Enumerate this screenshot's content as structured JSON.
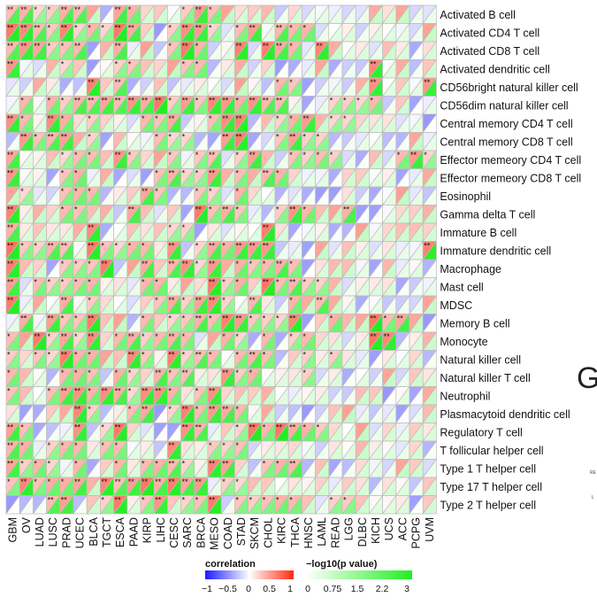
{
  "chart_data": {
    "type": "heatmap",
    "title": "",
    "xlabel": "",
    "ylabel": "",
    "x": [
      "GBM",
      "OV",
      "LUAD",
      "LUSC",
      "PRAD",
      "UCEC",
      "BLCA",
      "TGCT",
      "ESCA",
      "PAAD",
      "KIRP",
      "LIHC",
      "CESC",
      "SARC",
      "BRCA",
      "MESO",
      "COAD",
      "STAD",
      "SKCM",
      "CHOL",
      "KIRC",
      "THCA",
      "HNSC",
      "LAML",
      "READ",
      "LGG",
      "DLBC",
      "KICH",
      "UCS",
      "ACC",
      "PCPG",
      "UVM"
    ],
    "y": [
      "Activated B cell",
      "Activated CD4 T cell",
      "Activated CD8 T cell",
      "Activated dendritic cell",
      "CD56bright natural killer cell",
      "CD56dim natural killer cell",
      "Central memory CD4 T cell",
      "Central memory CD8 T cell",
      "Effector memeory CD4 T cell",
      "Effector memeory CD8 T cell",
      "Eosinophil",
      "Gamma delta T cell",
      "Immature  B cell",
      "Immature dendritic cell",
      "Macrophage",
      "Mast cell",
      "MDSC",
      "Memory B cell",
      "Monocyte",
      "Natural killer cell",
      "Natural killer T cell",
      "Neutrophil",
      "Plasmacytoid dendritic cell",
      "Regulatory T cell",
      "T follicular helper cell",
      "Type 1 T helper cell",
      "Type 17 T helper cell",
      "Type 2 T helper cell"
    ],
    "correlation_range": [
      -1,
      1
    ],
    "log_p_range": [
      0,
      3
    ],
    "cell_encoding": "upper-left triangle = correlation, lower-right triangle = -log10(p value)",
    "stars": [
      "**:*.**.****....***........****.............................",
      "*******.**.*.*.*****.....******....***..**.**....................*.",
      "*******.*.**....**.......****.....**..*****...**..................",
      "**.......*.......**.......*.*.........................**.........",
      "............**..**.......................**...........**......**...",
      "..*...*.*.***************.***.****.*******.......**.*..*.......",
      "**.*..***...*........*.***.....*****.....**.**...**..........",
      "..**.*****...*.........*.**.....****.....***.**.................",
      "**.......*.**...***.....*....***...***.....**.*.*..........****",
      "**.......**...........*.**.**.**...*..***.........................",
      "..*.....*..**.......**.*.....**....*.........................",
      "**.......**.......**........**.****.....*.***.....**................",
      "**..........**...........**...........**..............................",
      "**.*.*****..**.*.*.**...**...****.******......................**.",
      "**.......**.*.**....**..*****.**...**.*.***.......................",
      "**...*.**..**........**.......**.**...***.**.*.*....................",
      "**......**...*.........****.*****...**....*...**..................",
      "..**..***.*.**.......*...**.**.*****.*.**.**.....*....***.**...",
      ".*..***.**.***...***.*.****.....*.*...*....*.*........****.....",
      ".*...*.***.**.....***...**.***.*..*.**.*.....*..*..............",
      ".*.......*.**....**...**.***....***..*.......*......................",
      ".*.....*****.*****.******....***......................................",
      "..........**.*....*.**...****.*****..............................",
      "***.......**...***........****.....****.****.**...................",
      "***...*..**....**.......**.....*.**......................................",
      "***..**...*.....*....**.**.*..****.....**.**.........................",
      ".****..**.**..****************...**.....................",
      "......****.....***..*.**...*.***...**..**.*......**......"
    ]
  },
  "legend": {
    "correlation_title": "correlation",
    "correlation_ticks": [
      "−1",
      "−0.5",
      "0",
      "0.5",
      "1"
    ],
    "pvalue_title": "−log10(p value)",
    "pvalue_ticks": [
      "0",
      "0.75",
      "1.5",
      "2.2",
      "3"
    ],
    "colors": {
      "neg": "#1a1aff",
      "mid": "#ffffff",
      "pos": "#ff2a10",
      "p_low": "#ffffff",
      "p_high": "#22ee22",
      "grid": "#bdbdbd"
    }
  },
  "side": {
    "glyph": "G",
    "tiny_a": "RE",
    "tiny_b": "L"
  }
}
